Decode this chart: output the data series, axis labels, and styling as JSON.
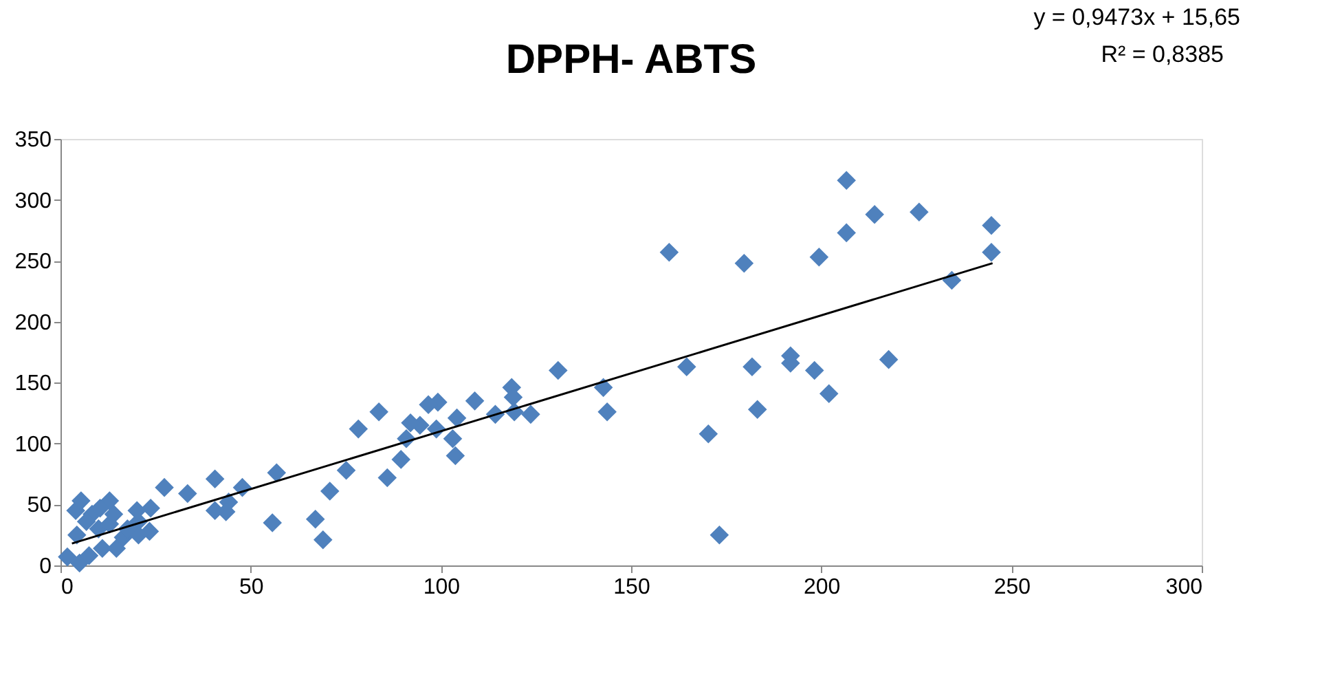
{
  "chart_data": {
    "type": "scatter",
    "title": "DPPH- ABTS",
    "annotations": [
      "y = 0,9473x + 15,65",
      "R² = 0,8385"
    ],
    "xlim": [
      0,
      300
    ],
    "xticks": [
      0,
      50,
      100,
      150,
      200,
      250,
      300
    ],
    "ylim": [
      0,
      350
    ],
    "yticks": [
      0,
      50,
      100,
      150,
      200,
      250,
      300,
      350
    ],
    "grid": false,
    "series": [
      {
        "marker": "diamond",
        "color": "#4f81bd",
        "x": [
          160,
          179.7,
          199.4,
          206.6,
          206.6,
          214,
          225.7,
          244.7,
          244.7,
          234.3,
          164.6,
          181.8,
          191.9,
          191.9,
          198.2,
          202,
          217.7,
          183.2,
          170.3,
          173.2,
          130.8,
          142.7,
          143.7,
          119.3,
          123.6,
          118.6,
          119,
          114.3,
          108.9,
          104.2,
          103.1,
          103.8,
          98.8,
          99.2,
          96.7,
          94.5,
          92,
          90.9,
          89.5,
          85.9,
          83.7,
          78.3,
          75.1,
          70.8,
          69,
          67,
          56.8,
          55.7,
          47.8,
          44.2,
          43.5,
          40.6,
          40.6,
          33.4,
          27.3,
          23.7,
          23.4,
          20.5,
          20.5,
          20.1,
          1.8,
          4.3,
          4,
          5.4,
          5,
          7.5,
          8.3,
          10,
          11,
          12.9,
          12.9,
          14.7,
          16.5,
          14,
          17.6,
          6.8,
          10.4
        ],
        "values": [
          257,
          248,
          253,
          316,
          273,
          288,
          290,
          279,
          257,
          234,
          163,
          163,
          172,
          166,
          160,
          141,
          169,
          128,
          108,
          25,
          160,
          146,
          126,
          126,
          124,
          146,
          138,
          124,
          135,
          121,
          104,
          90,
          112,
          134,
          132,
          115,
          117,
          104,
          87,
          72,
          126,
          112,
          78,
          61,
          21,
          38,
          76,
          35,
          64,
          52,
          44,
          71,
          45,
          59,
          64,
          47,
          28,
          36,
          25,
          45,
          7,
          25,
          45,
          53,
          2,
          8,
          42,
          30,
          14,
          53,
          34,
          14,
          23,
          42,
          30,
          36,
          47
        ]
      },
      {
        "type": "line",
        "color": "#000000",
        "x": [
          3,
          245
        ],
        "values": [
          18,
          248
        ]
      }
    ]
  }
}
